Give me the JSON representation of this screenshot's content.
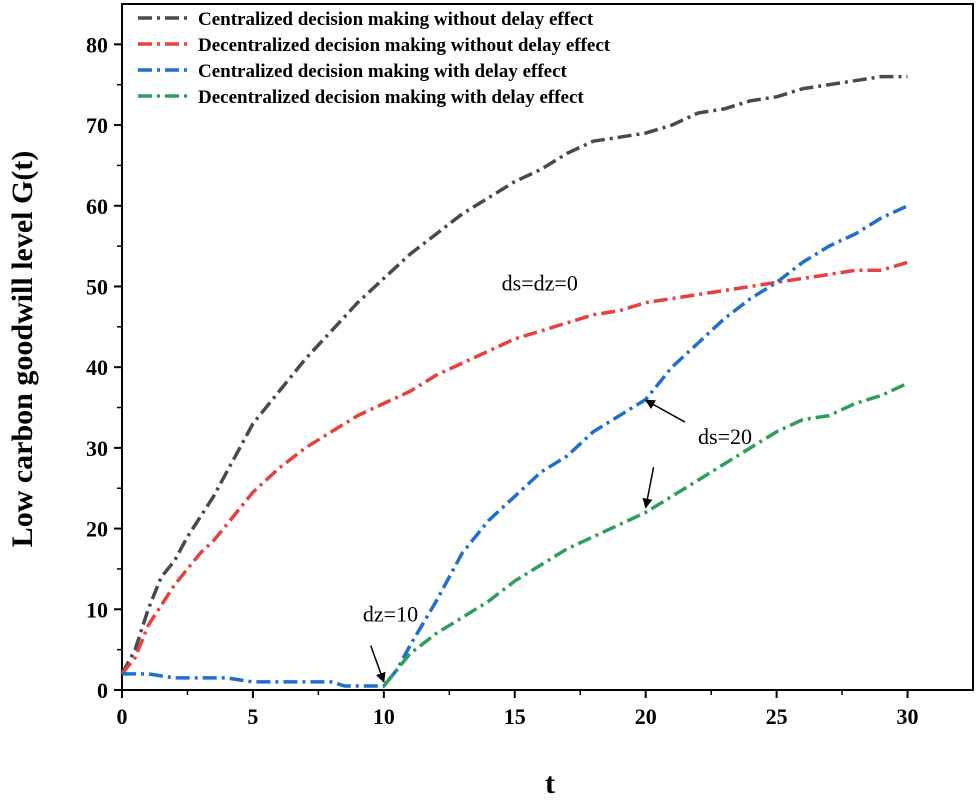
{
  "chart_data": {
    "type": "line",
    "title": "",
    "xlabel": "t",
    "ylabel": "Low carbon goodwill level G(t)",
    "xlim": [
      0,
      32.5
    ],
    "ylim": [
      0,
      85
    ],
    "xticks": [
      0,
      5,
      10,
      15,
      20,
      25,
      30
    ],
    "yticks": [
      0,
      10,
      20,
      30,
      40,
      50,
      60,
      70,
      80
    ],
    "grid": false,
    "legend_position": "top-left",
    "series": [
      {
        "name": "Centralized decision making without delay effect",
        "color": "#4a4a4a",
        "x": [
          0,
          0.5,
          1,
          1.5,
          2,
          2.5,
          3,
          3.5,
          4,
          5,
          6,
          7,
          8,
          9,
          10,
          11,
          12,
          13,
          14,
          15,
          16,
          17,
          18,
          19,
          20,
          21,
          22,
          23,
          24,
          25,
          26,
          27,
          28,
          29,
          30
        ],
        "values": [
          2,
          5,
          10,
          14,
          16,
          19,
          21.5,
          24,
          27,
          33,
          37,
          41,
          44.5,
          48,
          51,
          54,
          56.5,
          59,
          61,
          63,
          64.5,
          66.5,
          68,
          68.5,
          69,
          70,
          71.5,
          72,
          73,
          73.5,
          74.5,
          75,
          75.5,
          76,
          76
        ]
      },
      {
        "name": "Decentralized decision making without delay effect",
        "color": "#e8403e",
        "x": [
          0,
          0.5,
          1,
          1.5,
          2,
          2.5,
          3,
          3.5,
          4,
          5,
          6,
          7,
          8,
          9,
          10,
          11,
          12,
          13,
          14,
          15,
          16,
          17,
          18,
          19,
          20,
          21,
          22,
          23,
          24,
          25,
          26,
          27,
          28,
          29,
          30
        ],
        "values": [
          2,
          4,
          8,
          10.5,
          13,
          15,
          17,
          18.5,
          20.5,
          24.5,
          27.5,
          30,
          32,
          34,
          35.5,
          37,
          39,
          40.5,
          42,
          43.5,
          44.5,
          45.5,
          46.5,
          47,
          48,
          48.5,
          49,
          49.5,
          50,
          50.5,
          51,
          51.5,
          52,
          52,
          53
        ]
      },
      {
        "name": "Centralized decision making with delay effect",
        "color": "#1f6fd1",
        "x": [
          0,
          1,
          2,
          3,
          4,
          5,
          6,
          7,
          8,
          8.5,
          9,
          9.5,
          10,
          10.5,
          11,
          12,
          13,
          14,
          15,
          16,
          17,
          18,
          19,
          20,
          21,
          22,
          23,
          24,
          25,
          26,
          27,
          28,
          29,
          30
        ],
        "values": [
          2,
          2,
          1.5,
          1.5,
          1.5,
          1,
          1,
          1,
          1,
          0.5,
          0.5,
          0.5,
          0.5,
          2.5,
          5.5,
          11,
          17,
          21,
          24,
          27,
          29,
          32,
          34,
          36,
          40,
          43,
          46,
          48.5,
          50.5,
          53,
          55,
          56.5,
          58.5,
          60
        ]
      },
      {
        "name": "Decentralized decision making with delay effect",
        "color": "#2f9e5a",
        "x": [
          10,
          10.5,
          11,
          12,
          13,
          14,
          15,
          16,
          17,
          18,
          19,
          20,
          21,
          22,
          23,
          24,
          25,
          26,
          27,
          28,
          29,
          30
        ],
        "values": [
          0.5,
          2.5,
          4.5,
          7,
          9,
          11,
          13.5,
          15.5,
          17.5,
          19,
          20.5,
          22,
          24,
          26,
          28,
          30,
          32,
          33.5,
          34,
          35.5,
          36.5,
          38
        ]
      }
    ],
    "annotations": [
      {
        "text": "ds=dz=0",
        "x": 14.5,
        "y": 49.5
      },
      {
        "text": "ds=20",
        "x": 22.0,
        "y": 30.5
      },
      {
        "text": "dz=10",
        "x": 9.2,
        "y": 8.5
      }
    ]
  }
}
